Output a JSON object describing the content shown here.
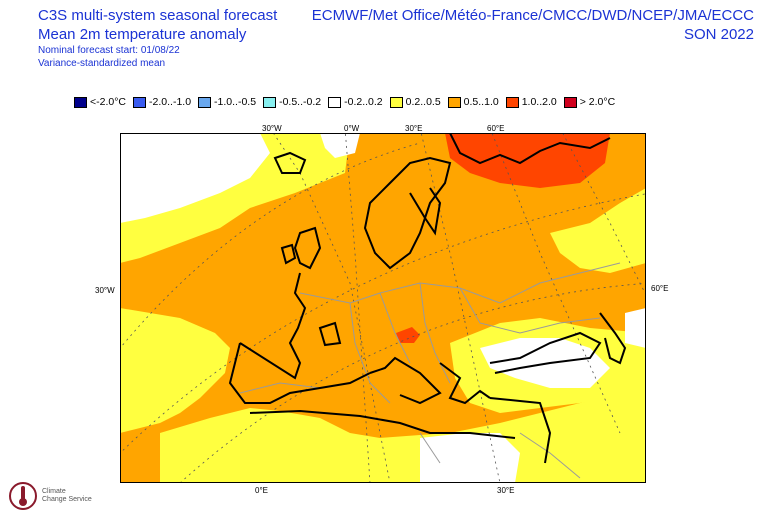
{
  "header": {
    "title_line1": "C3S multi-system seasonal forecast",
    "title_line2": "Mean 2m temperature anomaly",
    "start_line": "Nominal forecast start: 01/08/22",
    "method_line": "Variance-standardized mean",
    "systems": "ECMWF/Met Office/Météo-France/CMCC/DWD/NCEP/JMA/ECCC",
    "season": "SON 2022"
  },
  "legend": [
    {
      "label": "<-2.0°C",
      "color": "#00008b"
    },
    {
      "label": "-2.0..-1.0",
      "color": "#3a5cf0"
    },
    {
      "label": "-1.0..-0.5",
      "color": "#6aa8ee"
    },
    {
      "label": "-0.5..-0.2",
      "color": "#88f0f0"
    },
    {
      "label": "-0.2..0.2",
      "color": "#ffffff"
    },
    {
      "label": "0.2..0.5",
      "color": "#ffff40"
    },
    {
      "label": "0.5..1.0",
      "color": "#ffa500"
    },
    {
      "label": "1.0..2.0",
      "color": "#ff4500"
    },
    {
      "label": "> 2.0°C",
      "color": "#d0001e"
    }
  ],
  "axis_labels": {
    "top": [
      "30°W",
      "0°W",
      "30°E",
      "60°E"
    ],
    "left": "30°W",
    "right": "60°E",
    "bottom": [
      "0°E",
      "30°E"
    ]
  },
  "logo": {
    "text_line1": "Climate",
    "text_line2": "Change Service"
  }
}
